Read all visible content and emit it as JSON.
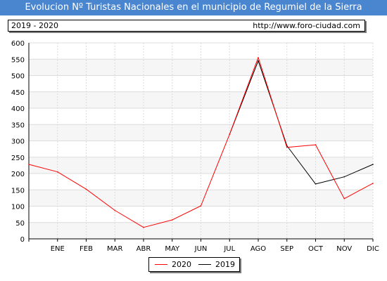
{
  "header": {
    "title": "Evolucion Nº Turistas Nacionales en el municipio de Regumiel de la Sierra"
  },
  "info": {
    "period": "2019 - 2020",
    "url": "http://www.foro-ciudad.com"
  },
  "colors": {
    "title_bg": "#4a86d0",
    "series_2020": "#ff0000",
    "series_2019": "#000000",
    "plot_bg": "#f6f6f6"
  },
  "chart_data": {
    "type": "line",
    "x": [
      "",
      "ENE",
      "FEB",
      "MAR",
      "ABR",
      "MAY",
      "JUN",
      "JUL",
      "AGO",
      "SEP",
      "OCT",
      "NOV",
      "DIC"
    ],
    "y_ticks": [
      0,
      50,
      100,
      150,
      200,
      250,
      300,
      350,
      400,
      450,
      500,
      550,
      600
    ],
    "ylim": [
      0,
      600
    ],
    "grid": true,
    "legend": "bottom-center",
    "series": [
      {
        "name": "2020",
        "color": "#ff0000",
        "values": [
          228,
          205,
          152,
          87,
          35,
          58,
          101,
          320,
          555,
          280,
          288,
          123,
          170
        ]
      },
      {
        "name": "2019",
        "color": "#000000",
        "values": [
          null,
          null,
          null,
          null,
          null,
          null,
          null,
          320,
          545,
          285,
          168,
          190,
          228
        ]
      }
    ]
  }
}
